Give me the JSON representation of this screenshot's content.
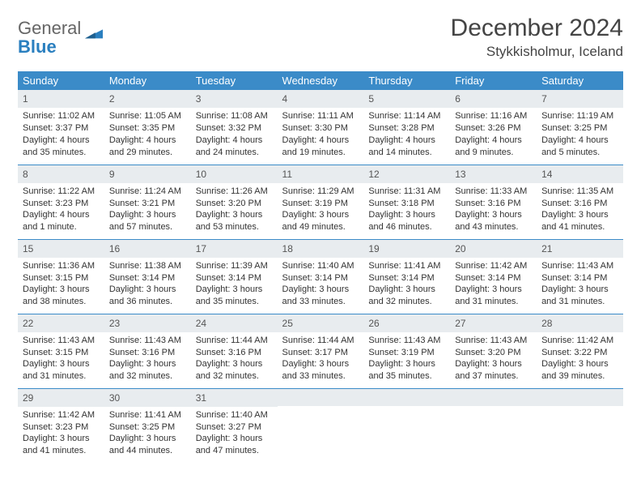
{
  "logo": {
    "general": "General",
    "blue": "Blue"
  },
  "title": "December 2024",
  "location": "Stykkisholmur, Iceland",
  "colors": {
    "header_bg": "#3b8bc8",
    "header_text": "#ffffff",
    "daynum_bg": "#e8ecef",
    "border": "#3b8bc8",
    "text": "#333333",
    "logo_gray": "#666666",
    "logo_blue": "#2a7fbf"
  },
  "typography": {
    "title_fontsize": 30,
    "location_fontsize": 17,
    "dow_fontsize": 13,
    "cell_fontsize": 11
  },
  "daysOfWeek": [
    "Sunday",
    "Monday",
    "Tuesday",
    "Wednesday",
    "Thursday",
    "Friday",
    "Saturday"
  ],
  "weeks": [
    [
      {
        "n": "1",
        "sunrise": "11:02 AM",
        "sunset": "3:37 PM",
        "daylight": "4 hours and 35 minutes."
      },
      {
        "n": "2",
        "sunrise": "11:05 AM",
        "sunset": "3:35 PM",
        "daylight": "4 hours and 29 minutes."
      },
      {
        "n": "3",
        "sunrise": "11:08 AM",
        "sunset": "3:32 PM",
        "daylight": "4 hours and 24 minutes."
      },
      {
        "n": "4",
        "sunrise": "11:11 AM",
        "sunset": "3:30 PM",
        "daylight": "4 hours and 19 minutes."
      },
      {
        "n": "5",
        "sunrise": "11:14 AM",
        "sunset": "3:28 PM",
        "daylight": "4 hours and 14 minutes."
      },
      {
        "n": "6",
        "sunrise": "11:16 AM",
        "sunset": "3:26 PM",
        "daylight": "4 hours and 9 minutes."
      },
      {
        "n": "7",
        "sunrise": "11:19 AM",
        "sunset": "3:25 PM",
        "daylight": "4 hours and 5 minutes."
      }
    ],
    [
      {
        "n": "8",
        "sunrise": "11:22 AM",
        "sunset": "3:23 PM",
        "daylight": "4 hours and 1 minute."
      },
      {
        "n": "9",
        "sunrise": "11:24 AM",
        "sunset": "3:21 PM",
        "daylight": "3 hours and 57 minutes."
      },
      {
        "n": "10",
        "sunrise": "11:26 AM",
        "sunset": "3:20 PM",
        "daylight": "3 hours and 53 minutes."
      },
      {
        "n": "11",
        "sunrise": "11:29 AM",
        "sunset": "3:19 PM",
        "daylight": "3 hours and 49 minutes."
      },
      {
        "n": "12",
        "sunrise": "11:31 AM",
        "sunset": "3:18 PM",
        "daylight": "3 hours and 46 minutes."
      },
      {
        "n": "13",
        "sunrise": "11:33 AM",
        "sunset": "3:16 PM",
        "daylight": "3 hours and 43 minutes."
      },
      {
        "n": "14",
        "sunrise": "11:35 AM",
        "sunset": "3:16 PM",
        "daylight": "3 hours and 41 minutes."
      }
    ],
    [
      {
        "n": "15",
        "sunrise": "11:36 AM",
        "sunset": "3:15 PM",
        "daylight": "3 hours and 38 minutes."
      },
      {
        "n": "16",
        "sunrise": "11:38 AM",
        "sunset": "3:14 PM",
        "daylight": "3 hours and 36 minutes."
      },
      {
        "n": "17",
        "sunrise": "11:39 AM",
        "sunset": "3:14 PM",
        "daylight": "3 hours and 35 minutes."
      },
      {
        "n": "18",
        "sunrise": "11:40 AM",
        "sunset": "3:14 PM",
        "daylight": "3 hours and 33 minutes."
      },
      {
        "n": "19",
        "sunrise": "11:41 AM",
        "sunset": "3:14 PM",
        "daylight": "3 hours and 32 minutes."
      },
      {
        "n": "20",
        "sunrise": "11:42 AM",
        "sunset": "3:14 PM",
        "daylight": "3 hours and 31 minutes."
      },
      {
        "n": "21",
        "sunrise": "11:43 AM",
        "sunset": "3:14 PM",
        "daylight": "3 hours and 31 minutes."
      }
    ],
    [
      {
        "n": "22",
        "sunrise": "11:43 AM",
        "sunset": "3:15 PM",
        "daylight": "3 hours and 31 minutes."
      },
      {
        "n": "23",
        "sunrise": "11:43 AM",
        "sunset": "3:16 PM",
        "daylight": "3 hours and 32 minutes."
      },
      {
        "n": "24",
        "sunrise": "11:44 AM",
        "sunset": "3:16 PM",
        "daylight": "3 hours and 32 minutes."
      },
      {
        "n": "25",
        "sunrise": "11:44 AM",
        "sunset": "3:17 PM",
        "daylight": "3 hours and 33 minutes."
      },
      {
        "n": "26",
        "sunrise": "11:43 AM",
        "sunset": "3:19 PM",
        "daylight": "3 hours and 35 minutes."
      },
      {
        "n": "27",
        "sunrise": "11:43 AM",
        "sunset": "3:20 PM",
        "daylight": "3 hours and 37 minutes."
      },
      {
        "n": "28",
        "sunrise": "11:42 AM",
        "sunset": "3:22 PM",
        "daylight": "3 hours and 39 minutes."
      }
    ],
    [
      {
        "n": "29",
        "sunrise": "11:42 AM",
        "sunset": "3:23 PM",
        "daylight": "3 hours and 41 minutes."
      },
      {
        "n": "30",
        "sunrise": "11:41 AM",
        "sunset": "3:25 PM",
        "daylight": "3 hours and 44 minutes."
      },
      {
        "n": "31",
        "sunrise": "11:40 AM",
        "sunset": "3:27 PM",
        "daylight": "3 hours and 47 minutes."
      },
      null,
      null,
      null,
      null
    ]
  ],
  "labels": {
    "sunrise": "Sunrise: ",
    "sunset": "Sunset: ",
    "daylight": "Daylight: "
  }
}
